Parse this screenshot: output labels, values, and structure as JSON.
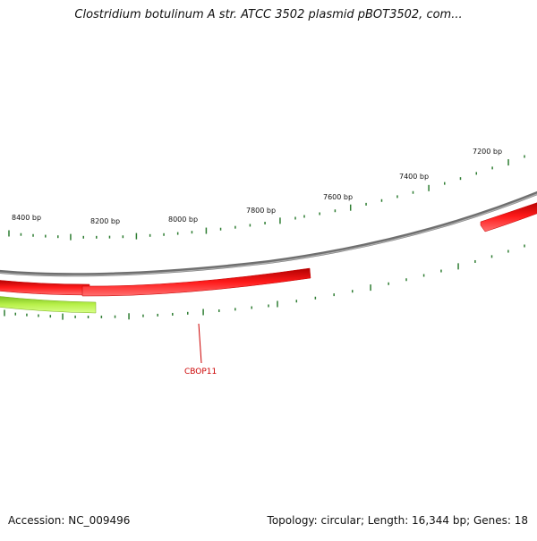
{
  "title": "Clostridium botulinum A str. ATCC 3502 plasmid pBOT3502, com...",
  "footer": {
    "accession": "Accession: NC_009496",
    "summary": "Topology: circular; Length: 16,344 bp; Genes: 18"
  },
  "scale_labels": [
    "8400 bp",
    "8200 bp",
    "8000 bp",
    "7800 bp",
    "7600 bp",
    "7400 bp",
    "7200 bp"
  ],
  "gene_label": "CBOP11",
  "colors": {
    "backbone": "#7f7f7f",
    "gene_red": "#ee0000",
    "gene_green": "#a8ec3c",
    "ticks": "#2e7d32",
    "gene_label": "#cc0000"
  }
}
